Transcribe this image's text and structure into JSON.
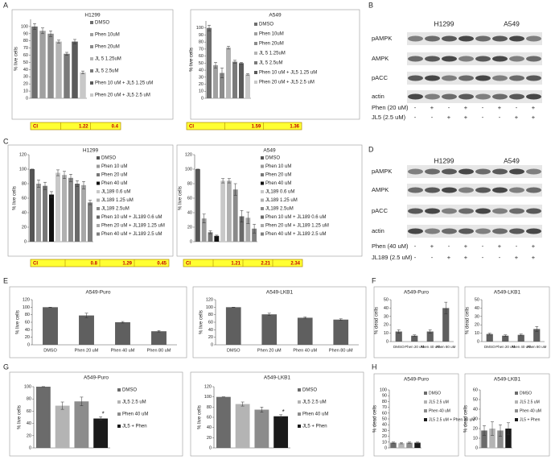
{
  "letters": [
    "A",
    "B",
    "C",
    "D",
    "E",
    "F",
    "G",
    "H"
  ],
  "chart_data": [
    {
      "type": "bar",
      "title": "H1299",
      "ylabel": "% live cells",
      "categories": [
        "DMSO",
        "Phen 10uM",
        "Phen 20uM",
        "JL 5 1.25uM",
        "JL 5 2.5uM",
        "Phen 10 uM + JL5 1.25 uM",
        "Phen 20 uM + JL5 2.5 uM"
      ],
      "values": [
        100,
        94,
        90,
        79,
        62,
        79,
        36
      ],
      "errors": [
        4,
        4,
        4,
        2,
        2,
        3,
        2
      ],
      "colors": [
        "#6e6e6e",
        "#a0a0a0",
        "#8c8c8c",
        "#b4b4b4",
        "#7a7a7a",
        "#5a5a5a",
        "#c8c8c8"
      ],
      "ylim": [
        0,
        110
      ],
      "yticks": [
        0,
        10,
        20,
        30,
        40,
        50,
        60,
        70,
        80,
        90,
        100
      ],
      "ci": {
        "label": "CI",
        "values": [
          1.22,
          0.4
        ]
      }
    },
    {
      "type": "bar",
      "title": "A549",
      "ylabel": "% live cells",
      "categories": [
        "DMSO",
        "Phen 10uM",
        "Phen 20uM",
        "JL 5 1.25uM",
        "JL 5 2.5uM",
        "Phen 10 uM + JL5 1.25 uM",
        "Phen 20 uM + JL5 2.5 uM"
      ],
      "values": [
        100,
        47,
        36,
        72,
        52,
        50,
        34
      ],
      "errors": [
        4,
        4,
        7,
        2,
        2,
        1,
        1
      ],
      "colors": [
        "#6e6e6e",
        "#a0a0a0",
        "#8c8c8c",
        "#b4b4b4",
        "#7a7a7a",
        "#5a5a5a",
        "#c8c8c8"
      ],
      "ylim": [
        0,
        110
      ],
      "yticks": [
        0,
        10,
        20,
        30,
        40,
        50,
        60,
        70,
        80,
        90,
        100
      ],
      "ci": {
        "label": "CI",
        "values": [
          1.59,
          1.36
        ]
      }
    },
    {
      "type": "bar",
      "title": "H1299",
      "ylabel": "% live cells",
      "categories": [
        "DMSO",
        "Phen 10 uM",
        "Phen 20 uM",
        "Phen 40 uM",
        "JL189 0.6 uM",
        "JL189 1.25 uM",
        "JL189 2.5uM",
        "Phen 10 uM + JL189 0.6 uM",
        "Phen 20 uM + JL189 1.25 uM",
        "Phen 40 uM + JL189 2.5 uM"
      ],
      "values": [
        100,
        80,
        77,
        65,
        95,
        92,
        88,
        80,
        78,
        54
      ],
      "errors": [
        0,
        5,
        5,
        4,
        4,
        5,
        5,
        4,
        5,
        3
      ],
      "colors": [
        "#555555",
        "#999999",
        "#777777",
        "#111111",
        "#c8c8c8",
        "#b0b0b0",
        "#8a8a8a",
        "#6a6a6a",
        "#a8a8a8",
        "#7f7f7f"
      ],
      "ylim": [
        0,
        120
      ],
      "yticks": [
        0,
        20,
        40,
        60,
        80,
        100,
        120
      ],
      "ci": {
        "label": "CI",
        "values": [
          0.8,
          1.29,
          0.45
        ]
      }
    },
    {
      "type": "bar",
      "title": "A549",
      "ylabel": "% live cells",
      "categories": [
        "DMSO",
        "Phen 10 uM",
        "Phen 20 uM",
        "Phen 40 uM",
        "JL189 0.6 uM",
        "JL189 1.25 uM",
        "JL189 2.5uM",
        "Phen 10 uM + JL189 0.6 uM",
        "Phen 20 uM + JL189 1.25 uM",
        "Phen 40 uM + JL189 2.5 uM"
      ],
      "values": [
        100,
        32,
        13,
        8,
        84,
        84,
        72,
        35,
        33,
        18
      ],
      "errors": [
        0,
        6,
        2,
        1,
        3,
        3,
        8,
        8,
        8,
        6
      ],
      "colors": [
        "#555555",
        "#999999",
        "#777777",
        "#111111",
        "#c8c8c8",
        "#b0b0b0",
        "#8a8a8a",
        "#6a6a6a",
        "#a8a8a8",
        "#7f7f7f"
      ],
      "ylim": [
        0,
        120
      ],
      "yticks": [
        0,
        20,
        40,
        60,
        80,
        100,
        120
      ],
      "ci": {
        "label": "CI",
        "values": [
          1.21,
          2.21,
          2.34
        ]
      }
    },
    {
      "type": "bar",
      "title": "A549-Puro",
      "ylabel": "% live cells",
      "categories": [
        "DMSO",
        "Phen 20 uM",
        "Phen 40 uM",
        "Phen 80 uM"
      ],
      "values": [
        100,
        78,
        60,
        36
      ],
      "errors": [
        0,
        6,
        2,
        2
      ],
      "color": "#5f5f5f",
      "ylim": [
        0,
        120
      ],
      "yticks": [
        0,
        20,
        40,
        60,
        80,
        100,
        120
      ]
    },
    {
      "type": "bar",
      "title": "A549-LKB1",
      "ylabel": "% live cells",
      "categories": [
        "DMSO",
        "Phen 20 uM",
        "Phen 40 uM",
        "Phen 80 uM"
      ],
      "values": [
        100,
        81,
        72,
        67
      ],
      "errors": [
        0,
        3,
        2,
        2
      ],
      "color": "#5f5f5f",
      "ylim": [
        0,
        120
      ],
      "yticks": [
        0,
        20,
        40,
        60,
        80,
        100,
        120
      ]
    },
    {
      "type": "bar",
      "title": "A549-Puro",
      "ylabel": "% dead cells",
      "categories": [
        "DMSO",
        "Phen 20 uM",
        "Phen 40 uM",
        "Phen 80 uM"
      ],
      "values": [
        12,
        7,
        12,
        40
      ],
      "errors": [
        2,
        1,
        2,
        7
      ],
      "color": "#5f5f5f",
      "ylim": [
        0,
        50
      ],
      "yticks": [
        0,
        10,
        20,
        30,
        40,
        50
      ]
    },
    {
      "type": "bar",
      "title": "A549-LKB1",
      "ylabel": "% dead cells",
      "categories": [
        "DMSO",
        "Phen 20 uM",
        "Phen 40 uM",
        "Phen 80 uM"
      ],
      "values": [
        9,
        7,
        8,
        15
      ],
      "errors": [
        1,
        1,
        1,
        3
      ],
      "color": "#5f5f5f",
      "ylim": [
        0,
        50
      ],
      "yticks": [
        0,
        10,
        20,
        30,
        40,
        50
      ]
    },
    {
      "type": "bar",
      "title": "A549-Puro",
      "ylabel": "% live cells",
      "categories": [
        "DMSO",
        "JL5 2.5 uM",
        "Phen 40 uM",
        "JL5 + Phen"
      ],
      "values": [
        100,
        69,
        76,
        48
      ],
      "errors": [
        0,
        6,
        7,
        3
      ],
      "colors": [
        "#6b6b6b",
        "#b4b4b4",
        "#8c8c8c",
        "#1a1a1a"
      ],
      "ylim": [
        0,
        100
      ],
      "yticks": [
        0,
        20,
        40,
        60,
        80,
        100
      ],
      "annotations": [
        null,
        null,
        null,
        "*"
      ]
    },
    {
      "type": "bar",
      "title": "A549-LKB1",
      "ylabel": "% live cells",
      "categories": [
        "DMSO",
        "JL5 2.5 uM",
        "Phen 40 uM",
        "JL5 + Phen"
      ],
      "values": [
        100,
        86,
        75,
        62
      ],
      "errors": [
        0,
        4,
        5,
        3
      ],
      "colors": [
        "#6b6b6b",
        "#b4b4b4",
        "#8c8c8c",
        "#1a1a1a"
      ],
      "ylim": [
        0,
        120
      ],
      "yticks": [
        0,
        20,
        40,
        60,
        80,
        100,
        120
      ],
      "annotations": [
        null,
        null,
        null,
        "*"
      ]
    },
    {
      "type": "bar",
      "title": "A549-Puro",
      "ylabel": "% dead cells",
      "categories": [
        "DMSO",
        "JL5 2.5 uM",
        "Phen 40 uM",
        "JL5 2.5 uM + Phen 40 uM"
      ],
      "values": [
        9,
        8,
        9,
        9
      ],
      "errors": [
        1,
        1,
        1,
        1
      ],
      "colors": [
        "#6b6b6b",
        "#b4b4b4",
        "#8c8c8c",
        "#1a1a1a"
      ],
      "ylim": [
        0,
        100
      ],
      "yticks": [
        0,
        10,
        20,
        30,
        40,
        50,
        60,
        70,
        80,
        90,
        100
      ]
    },
    {
      "type": "bar",
      "title": "A549-LKB1",
      "ylabel": "% dead cells",
      "categories": [
        "DMSO",
        "JL5 2.5 uM",
        "Phen 40 uM",
        "JL5 + Phen"
      ],
      "values": [
        18,
        20,
        18,
        20
      ],
      "errors": [
        5,
        7,
        6,
        6
      ],
      "colors": [
        "#6b6b6b",
        "#b4b4b4",
        "#8c8c8c",
        "#1a1a1a"
      ],
      "ylim": [
        0,
        60
      ],
      "yticks": [
        0,
        10,
        20,
        30,
        40,
        50,
        60
      ]
    }
  ],
  "blots": [
    {
      "cell_lines": [
        "H1299",
        "A549"
      ],
      "rows": [
        "pAMPK",
        "AMPK",
        "pACC",
        "actin"
      ],
      "treatments": [
        {
          "name": "Phen (20 uM)",
          "signs": [
            "-",
            "+",
            "-",
            "+",
            "-",
            "+",
            "-",
            "+"
          ]
        },
        {
          "name": "JL5 (2.5 uM)",
          "signs": [
            "-",
            "-",
            "+",
            "+",
            "-",
            "-",
            "+",
            "+"
          ]
        }
      ]
    },
    {
      "cell_lines": [
        "H1299",
        "A549"
      ],
      "rows": [
        "pAMPK",
        "AMPK",
        "pACC",
        "actin"
      ],
      "treatments": [
        {
          "name": "Phen (40 uM)",
          "signs": [
            "-",
            "+",
            "-",
            "+",
            "-",
            "+",
            "-",
            "+"
          ]
        },
        {
          "name": "JL189 (2.5 uM)",
          "signs": [
            "-",
            "-",
            "+",
            "+",
            "-",
            "-",
            "+",
            "+"
          ]
        }
      ]
    }
  ]
}
